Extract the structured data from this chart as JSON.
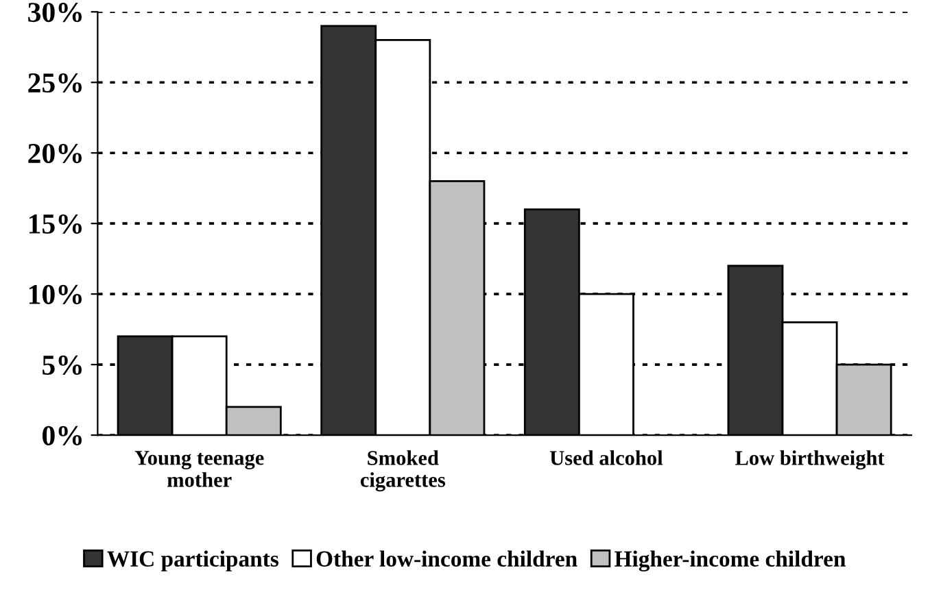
{
  "chart_data": {
    "type": "bar",
    "categories": [
      "Young teenage\nmother",
      "Smoked\ncigarettes",
      "Used alcohol",
      "Low birthweight"
    ],
    "series": [
      {
        "name": "WIC participants",
        "color": "#333333",
        "values": [
          7,
          29,
          16,
          12
        ]
      },
      {
        "name": "Other low-income children",
        "color": "#ffffff",
        "values": [
          7,
          28,
          10,
          8
        ]
      },
      {
        "name": "Higher-income children",
        "color": "#c0c0c0",
        "values": [
          2,
          18,
          null,
          5
        ]
      }
    ],
    "ylim": [
      0,
      30
    ],
    "yticks": [
      {
        "value": 0,
        "label": "0%"
      },
      {
        "value": 5,
        "label": "5%"
      },
      {
        "value": 10,
        "label": "10%"
      },
      {
        "value": 15,
        "label": "15%"
      },
      {
        "value": 20,
        "label": "20%"
      },
      {
        "value": 25,
        "label": "25%"
      },
      {
        "value": 30,
        "label": "30%"
      }
    ],
    "grid": "y",
    "legend": "bottom"
  }
}
